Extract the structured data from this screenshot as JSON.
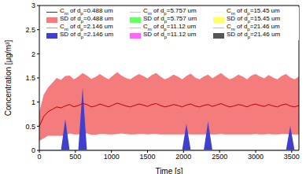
{
  "chart_data": {
    "type": "line",
    "xlabel": "Time [s]",
    "ylabel": "Concentration [μg/m³]",
    "xlim": [
      0,
      3600
    ],
    "xticks": [
      0,
      500,
      1000,
      1500,
      2000,
      2500,
      3000,
      3500
    ],
    "ylim": [
      0,
      3
    ],
    "yticks": [
      0,
      0.5,
      1,
      1.5,
      2,
      2.5,
      3
    ],
    "grid": false,
    "legend": "top",
    "x": [
      0,
      60,
      120,
      180,
      240,
      300,
      360,
      420,
      480,
      540,
      600,
      660,
      720,
      780,
      840,
      900,
      960,
      1020,
      1080,
      1140,
      1200,
      1260,
      1320,
      1380,
      1440,
      1500,
      1560,
      1620,
      1680,
      1740,
      1800,
      1860,
      1920,
      1980,
      2040,
      2100,
      2160,
      2220,
      2280,
      2340,
      2400,
      2460,
      2520,
      2580,
      2640,
      2700,
      2760,
      2820,
      2880,
      2940,
      3000,
      3060,
      3120,
      3180,
      3240,
      3300,
      3360,
      3420,
      3480,
      3540,
      3600
    ],
    "series": [
      {
        "name": "Cm of dp=0.488 um",
        "type": "line",
        "color": "#c00000",
        "values": [
          0.5,
          0.7,
          0.8,
          0.85,
          0.9,
          0.88,
          0.92,
          0.95,
          0.9,
          0.93,
          0.97,
          0.95,
          0.9,
          0.92,
          0.96,
          0.93,
          0.9,
          0.94,
          0.98,
          0.95,
          0.92,
          0.9,
          0.93,
          0.96,
          0.94,
          0.91,
          0.95,
          0.97,
          0.93,
          0.9,
          0.92,
          0.95,
          0.93,
          0.9,
          0.94,
          0.96,
          0.92,
          0.9,
          0.93,
          0.95,
          0.91,
          0.94,
          0.97,
          0.93,
          0.9,
          0.92,
          0.95,
          0.93,
          0.9,
          0.94,
          0.96,
          0.93,
          0.91,
          0.95,
          0.92,
          0.9,
          0.94,
          0.96,
          0.92,
          0.9,
          0.93
        ]
      },
      {
        "name": "SD of dp=0.488 um",
        "type": "area",
        "color": "#f47c7c",
        "values": [
          0.3,
          0.45,
          0.5,
          0.55,
          0.6,
          0.58,
          0.62,
          0.6,
          0.57,
          0.6,
          0.63,
          0.6,
          0.58,
          0.6,
          0.62,
          0.59,
          0.57,
          0.61,
          0.64,
          0.6,
          0.58,
          0.57,
          0.6,
          0.62,
          0.6,
          0.58,
          0.61,
          0.63,
          0.6,
          0.57,
          0.59,
          0.62,
          0.6,
          0.57,
          0.6,
          0.63,
          0.59,
          0.57,
          0.6,
          0.62,
          0.58,
          0.61,
          0.63,
          0.6,
          0.57,
          0.59,
          0.62,
          0.6,
          0.57,
          0.61,
          0.62,
          0.6,
          0.58,
          0.61,
          0.59,
          0.57,
          0.6,
          0.62,
          0.59,
          0.57,
          0.6
        ]
      },
      {
        "name": "Cm of dp=2.146 um",
        "type": "line",
        "color": "#9999ff",
        "values": [
          0,
          0,
          0,
          0,
          0,
          0,
          0,
          0,
          0,
          0,
          0,
          0,
          0,
          0,
          0,
          0,
          0,
          0,
          0,
          0,
          0,
          0,
          0,
          0,
          0,
          0,
          0,
          0,
          0,
          0,
          0,
          0,
          0,
          0,
          0,
          0,
          0,
          0,
          0,
          0,
          0,
          0,
          0,
          0,
          0,
          0,
          0,
          0,
          0,
          0,
          0,
          0,
          0,
          0,
          0,
          0,
          0,
          0,
          0,
          0,
          0
        ]
      },
      {
        "name": "SD of dp=2.146 um",
        "type": "area",
        "color": "#4040d0",
        "values": [
          0,
          0,
          0,
          0,
          0,
          0,
          0.65,
          0,
          0,
          0,
          1.3,
          0,
          0,
          0,
          0,
          0,
          0,
          0,
          0,
          0,
          0,
          0,
          0,
          0,
          0,
          0,
          0,
          0,
          0,
          0,
          0,
          0,
          0,
          0,
          0.55,
          0,
          0,
          0,
          0,
          0.6,
          0,
          0,
          0,
          0,
          0,
          0,
          0,
          0,
          0,
          0,
          0,
          0,
          0,
          0,
          0,
          0,
          0,
          0,
          0.5,
          0,
          0
        ]
      },
      {
        "name": "Cm of dp=5.757 um",
        "type": "line",
        "color": "#90ee90",
        "values": [
          0,
          0,
          0,
          0,
          0,
          0,
          0,
          0,
          0,
          0,
          0,
          0,
          0,
          0,
          0,
          0,
          0,
          0,
          0,
          0,
          0,
          0,
          0,
          0,
          0,
          0,
          0,
          0,
          0,
          0,
          0,
          0,
          0,
          0,
          0,
          0,
          0,
          0,
          0,
          0,
          0,
          0,
          0,
          0,
          0,
          0,
          0,
          0,
          0,
          0,
          0,
          0,
          0,
          0,
          0,
          0,
          0,
          0,
          0,
          0,
          0
        ]
      },
      {
        "name": "SD of dp=5.757 um",
        "type": "area",
        "color": "#66ff66",
        "values": [
          0,
          0,
          0,
          0,
          0,
          0,
          0,
          0,
          0,
          0,
          0,
          0,
          0,
          0,
          0,
          0,
          0,
          0,
          0,
          0,
          0,
          0,
          0,
          0,
          0,
          0,
          0,
          0,
          0,
          0,
          0,
          0,
          0,
          0,
          0,
          0,
          0,
          0,
          0,
          0,
          0,
          0,
          0,
          0,
          0,
          0,
          0,
          0,
          0,
          0,
          0,
          0,
          0,
          0,
          0,
          0,
          0,
          0,
          0,
          0,
          0
        ]
      },
      {
        "name": "Cm of dp=11.12 um",
        "type": "line",
        "color": "#ff99ff",
        "values": [
          0,
          0,
          0,
          0,
          0,
          0,
          0,
          0,
          0,
          0,
          0,
          0,
          0,
          0,
          0,
          0,
          0,
          0,
          0,
          0,
          0,
          0,
          0,
          0,
          0,
          0,
          0,
          0,
          0,
          0,
          0,
          0,
          0,
          0,
          0,
          0,
          0,
          0,
          0,
          0,
          0,
          0,
          0,
          0,
          0,
          0,
          0,
          0,
          0,
          0,
          0,
          0,
          0,
          0,
          0,
          0,
          0,
          0,
          0,
          0,
          0
        ]
      },
      {
        "name": "SD of dp=11.12 um",
        "type": "area",
        "color": "#ff66ff",
        "values": [
          0,
          0,
          0,
          0,
          0,
          0,
          0,
          0,
          0,
          0,
          0,
          0,
          0,
          0,
          0,
          0,
          0,
          0,
          0,
          0,
          0,
          0,
          0,
          0,
          0,
          0,
          0,
          0,
          0,
          0,
          0,
          0,
          0,
          0,
          0,
          0,
          0,
          0,
          0,
          0,
          0,
          0,
          0,
          0,
          0,
          0,
          0,
          0,
          0,
          0,
          0,
          0,
          0,
          0,
          0,
          0,
          0,
          0,
          0,
          0,
          0
        ]
      },
      {
        "name": "Cm of dp=15.45 um",
        "type": "line",
        "color": "#ffff99",
        "values": [
          0,
          0,
          0,
          0,
          0,
          0,
          0,
          0,
          0,
          0,
          0,
          0,
          0,
          0,
          0,
          0,
          0,
          0,
          0,
          0,
          0,
          0,
          0,
          0,
          0,
          0,
          0,
          0,
          0,
          0,
          0,
          0,
          0,
          0,
          0,
          0,
          0,
          0,
          0,
          0,
          0,
          0,
          0,
          0,
          0,
          0,
          0,
          0,
          0,
          0,
          0,
          0,
          0,
          0,
          0,
          0,
          0,
          0,
          0,
          0,
          0
        ]
      },
      {
        "name": "SD of dp=15.45 um",
        "type": "area",
        "color": "#ffff66",
        "values": [
          0,
          0,
          0,
          0,
          0,
          0,
          0,
          0,
          0,
          0,
          0,
          0,
          0,
          0,
          0,
          0,
          0,
          0,
          0,
          0,
          0,
          0,
          0,
          0,
          0,
          0,
          0,
          0,
          0,
          0,
          0,
          0,
          0,
          0,
          0,
          0,
          0,
          0,
          0,
          0,
          0,
          0,
          0,
          0,
          0,
          0,
          0,
          0,
          0,
          0,
          0,
          0,
          0,
          0,
          0,
          0,
          0,
          0,
          0,
          0,
          0
        ]
      },
      {
        "name": "Cm of dp=21.46 um",
        "type": "line",
        "color": "#bbbbbb",
        "values": [
          0,
          0,
          0,
          0,
          0,
          0,
          0,
          0,
          0,
          0,
          0,
          0,
          0,
          0,
          0,
          0,
          0,
          0,
          0,
          0,
          0,
          0,
          0,
          0,
          0,
          0,
          0,
          0,
          0,
          0,
          0,
          0,
          0,
          0,
          0,
          0,
          0,
          0,
          0,
          0,
          0,
          0,
          0,
          0,
          0,
          0,
          0,
          0,
          0,
          0,
          0,
          0,
          0,
          0,
          0,
          0,
          0,
          0,
          0,
          0,
          0
        ]
      },
      {
        "name": "SD of dp=21.46 um",
        "type": "area",
        "color": "#555555",
        "values": [
          0,
          0,
          0,
          0,
          0,
          0,
          0,
          0,
          0,
          0,
          0,
          0,
          0,
          0,
          0,
          0,
          0,
          0,
          0,
          0,
          0,
          0,
          0,
          0,
          0,
          0,
          0,
          0,
          0,
          0,
          0,
          0,
          0,
          0,
          0,
          0,
          0,
          0,
          0,
          0,
          0,
          0,
          0,
          0,
          0,
          0,
          0,
          0,
          0,
          0,
          0,
          0,
          0,
          0,
          0,
          0,
          0,
          0,
          0,
          0,
          0
        ]
      }
    ]
  }
}
